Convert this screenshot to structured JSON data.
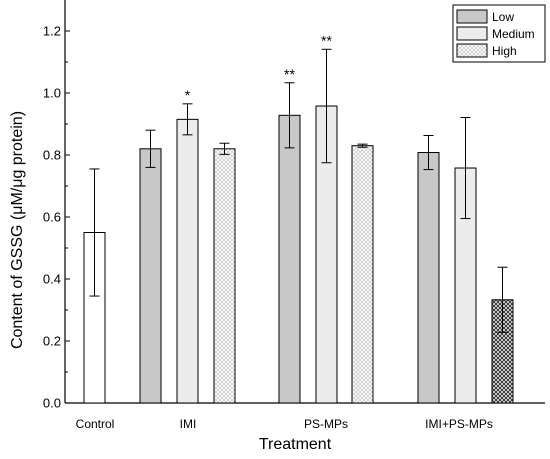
{
  "chart_data": {
    "type": "bar",
    "xlabel": "Treatment",
    "ylabel": "Content of GSSG (μM/μg protein)",
    "ylim": [
      0,
      1.3
    ],
    "yticks": [
      "0.0",
      "0.2",
      "0.4",
      "0.6",
      "0.8",
      "1.0",
      "1.2"
    ],
    "categories": [
      "Control",
      "IMI",
      "PS-MPs",
      "IMI+PS-MPs"
    ],
    "legend": {
      "placement": "top-right",
      "entries": [
        {
          "name": "Low",
          "fill": "#c8c8c8",
          "pattern": "solid"
        },
        {
          "name": "Medium",
          "fill": "#ececec",
          "pattern": "solid"
        },
        {
          "name": "High",
          "fill": "#ffffff",
          "pattern": "crosshatch-light"
        }
      ]
    },
    "bars": [
      {
        "category": "Control",
        "level": "",
        "value": 0.55,
        "error": 0.205,
        "fill": "#ffffff",
        "pattern": "solid",
        "annotation": ""
      },
      {
        "category": "IMI",
        "level": "Low",
        "value": 0.82,
        "error": 0.06,
        "fill": "#c8c8c8",
        "pattern": "solid",
        "annotation": ""
      },
      {
        "category": "IMI",
        "level": "Medium",
        "value": 0.915,
        "error": 0.05,
        "fill": "#ececec",
        "pattern": "solid",
        "annotation": "*"
      },
      {
        "category": "IMI",
        "level": "High",
        "value": 0.82,
        "error": 0.018,
        "fill": "#ffffff",
        "pattern": "crosshatch-light",
        "annotation": ""
      },
      {
        "category": "PS-MPs",
        "level": "Low",
        "value": 0.928,
        "error": 0.105,
        "fill": "#c8c8c8",
        "pattern": "solid",
        "annotation": "**"
      },
      {
        "category": "PS-MPs",
        "level": "Medium",
        "value": 0.958,
        "error": 0.183,
        "fill": "#ececec",
        "pattern": "solid",
        "annotation": "**"
      },
      {
        "category": "PS-MPs",
        "level": "High",
        "value": 0.83,
        "error": 0.005,
        "fill": "#ffffff",
        "pattern": "crosshatch-light",
        "annotation": ""
      },
      {
        "category": "IMI+PS-MPs",
        "level": "Low",
        "value": 0.808,
        "error": 0.055,
        "fill": "#c8c8c8",
        "pattern": "solid",
        "annotation": ""
      },
      {
        "category": "IMI+PS-MPs",
        "level": "Medium",
        "value": 0.758,
        "error": 0.163,
        "fill": "#ececec",
        "pattern": "solid",
        "annotation": ""
      },
      {
        "category": "IMI+PS-MPs",
        "level": "High",
        "value": 0.333,
        "error": 0.105,
        "fill": "#ffffff",
        "pattern": "crosshatch-dense",
        "annotation": ""
      }
    ]
  }
}
